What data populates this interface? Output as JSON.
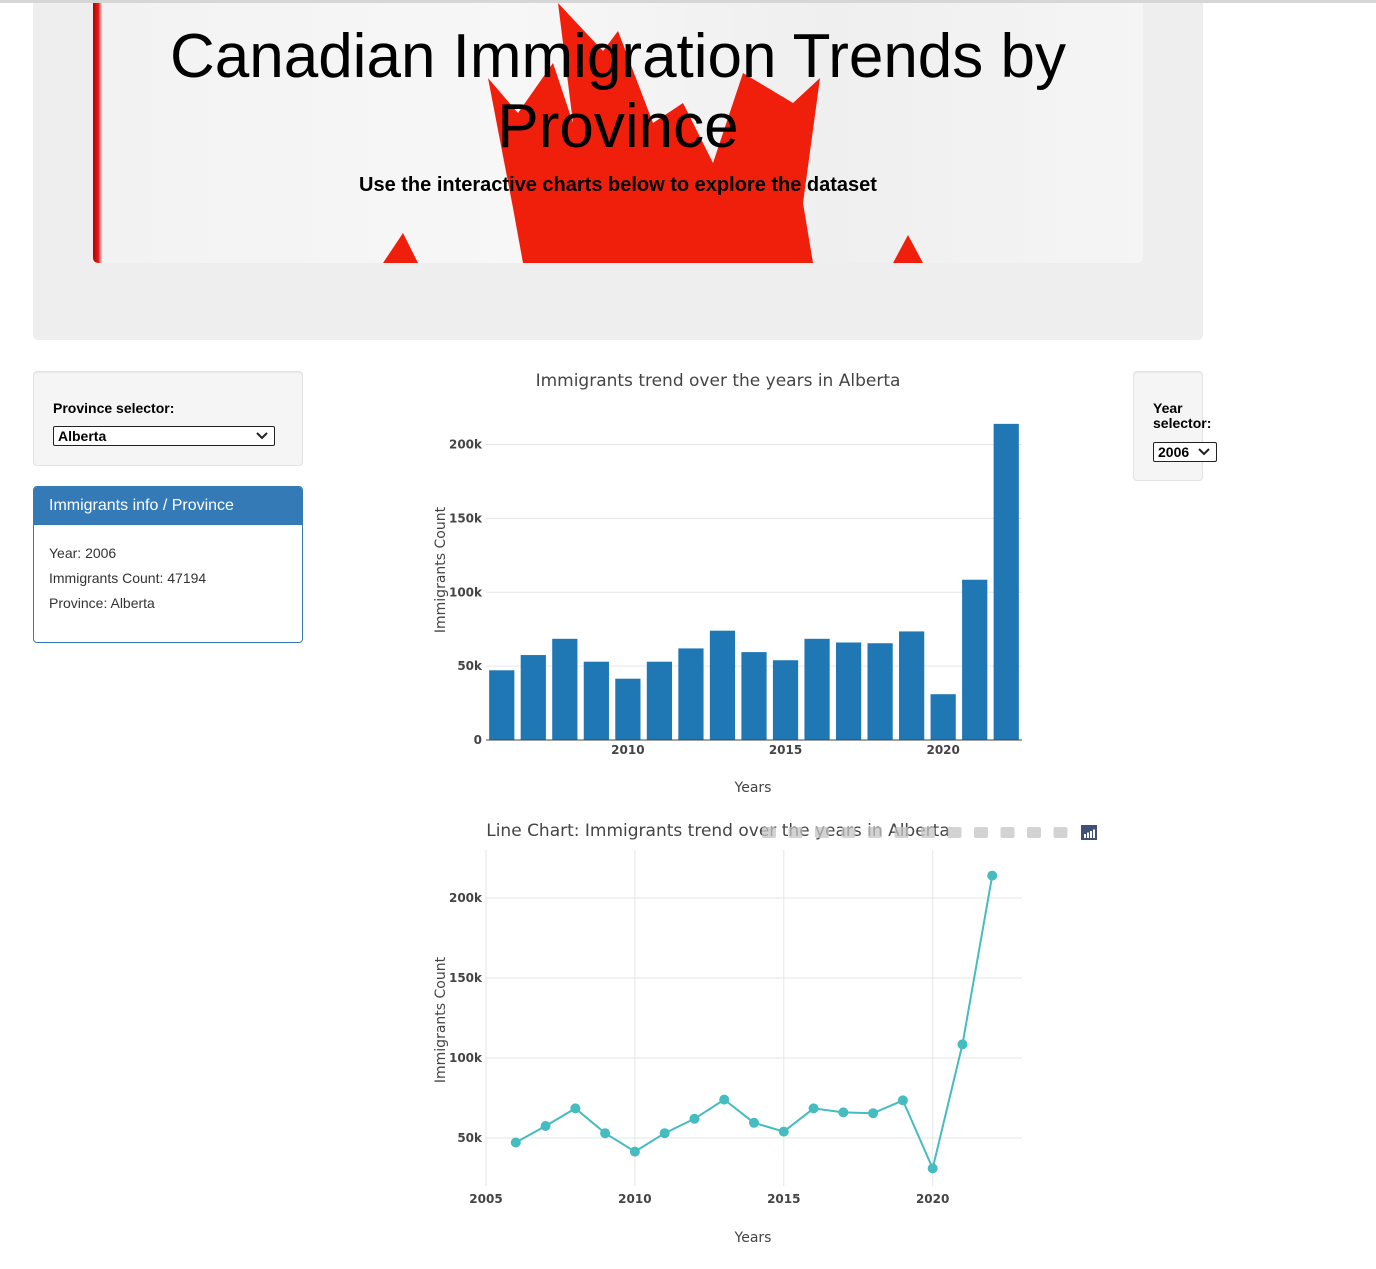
{
  "header": {
    "title": "Canadian Immigration Trends by Province",
    "subtitle": "Use the interactive charts below to explore the dataset"
  },
  "controls": {
    "province_label": "Province selector:",
    "province_value": "Alberta",
    "year_label": "Year selector:",
    "year_value": "2006"
  },
  "info_panel": {
    "heading": "Immigrants info / Province",
    "year_line": "Year: 2006",
    "count_line": "Immigrants Count: 47194",
    "province_line": "Province: Alberta"
  },
  "colors": {
    "bar": "#1f77b4",
    "line": "#45bcbf",
    "panel": "#337ab7"
  },
  "chart_data": [
    {
      "type": "bar",
      "title": "Immigrants trend over the years in Alberta",
      "xlabel": "Years",
      "ylabel": "Immigrants Count",
      "x": [
        2006,
        2007,
        2008,
        2009,
        2010,
        2011,
        2012,
        2013,
        2014,
        2015,
        2016,
        2017,
        2018,
        2019,
        2020,
        2021,
        2022
      ],
      "values": [
        47194,
        57500,
        68500,
        53000,
        41500,
        53000,
        62000,
        74000,
        59500,
        54000,
        68500,
        66000,
        65500,
        73500,
        31000,
        108500,
        214000
      ],
      "yticks": [
        "0",
        "50k",
        "100k",
        "150k",
        "200k"
      ],
      "xticks": [
        "2010",
        "2015",
        "2020"
      ],
      "ylim": [
        0,
        220000
      ],
      "grid": "horizontal"
    },
    {
      "type": "line",
      "title": "Line Chart: Immigrants trend over the years in Alberta",
      "xlabel": "Years",
      "ylabel": "Immigrants Count",
      "x": [
        2006,
        2007,
        2008,
        2009,
        2010,
        2011,
        2012,
        2013,
        2014,
        2015,
        2016,
        2017,
        2018,
        2019,
        2020,
        2021,
        2022
      ],
      "values": [
        47194,
        57500,
        68500,
        53000,
        41500,
        53000,
        62000,
        74000,
        59500,
        54000,
        68500,
        66000,
        65500,
        73500,
        31000,
        108500,
        214000
      ],
      "yticks": [
        "50k",
        "100k",
        "150k",
        "200k"
      ],
      "xticks": [
        "2005",
        "2010",
        "2015",
        "2020"
      ],
      "xlim": [
        2005,
        2023
      ],
      "ylim": [
        20000,
        230000
      ],
      "grid": "both",
      "markers": true
    }
  ]
}
